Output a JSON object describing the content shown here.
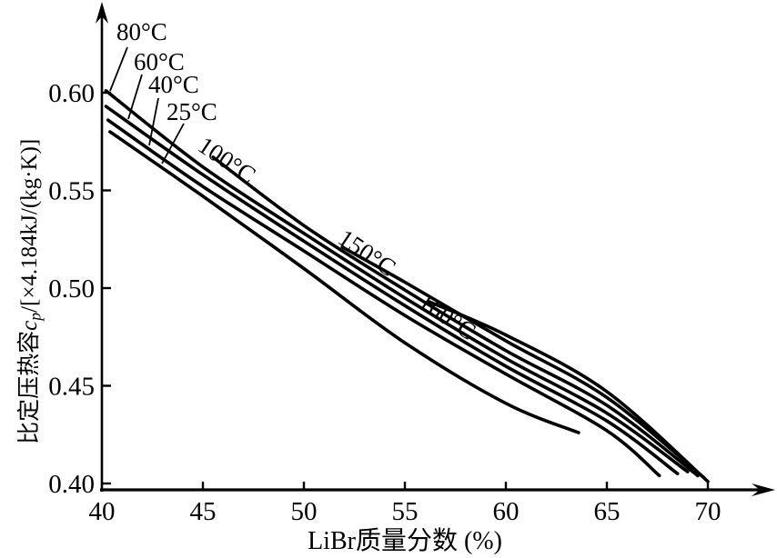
{
  "figure": {
    "background": "#ffffff",
    "ink_color": "#000000"
  },
  "chart_data": {
    "type": "line",
    "title": "",
    "xlabel": "LiBr质量分数 (%)",
    "ylabel": "比定压热容c_p/[×4.184kJ/(kg·K)]",
    "ylabel_parts": {
      "prefix": "比定压热容",
      "symbol": "c",
      "symbol_sub": "p",
      "suffix": "/[×4.184kJ/(kg·K)]"
    },
    "xlim": [
      40,
      72.5
    ],
    "ylim": [
      0.4,
      0.615
    ],
    "x_ticks": [
      40,
      45,
      50,
      55,
      60,
      65,
      70
    ],
    "x_tick_labels": [
      "40",
      "45",
      "50",
      "55",
      "60",
      "65",
      "70"
    ],
    "y_ticks": [
      0.6,
      0.55,
      0.5,
      0.45,
      0.4
    ],
    "y_tick_labels": [
      "0.60",
      "0.55",
      "0.50",
      "0.45",
      "0.40"
    ],
    "grid": false,
    "legend_position": "inline-curve-labels",
    "series": [
      {
        "name": "25°C",
        "label_style": "leader",
        "points": [
          [
            40.4,
            0.58
          ],
          [
            45,
            0.547
          ],
          [
            50,
            0.51
          ],
          [
            55,
            0.472
          ],
          [
            60,
            0.441
          ],
          [
            63.6,
            0.426
          ]
        ]
      },
      {
        "name": "40°C",
        "label_style": "leader",
        "points": [
          [
            40.3,
            0.586
          ],
          [
            45,
            0.552
          ],
          [
            50,
            0.519
          ],
          [
            55,
            0.486
          ],
          [
            60,
            0.456
          ],
          [
            65,
            0.427
          ],
          [
            67.6,
            0.404
          ]
        ]
      },
      {
        "name": "60°C",
        "label_style": "leader",
        "points": [
          [
            40.2,
            0.593
          ],
          [
            45,
            0.558
          ],
          [
            50,
            0.524
          ],
          [
            55,
            0.491
          ],
          [
            60,
            0.46
          ],
          [
            65,
            0.432
          ],
          [
            68.5,
            0.405
          ]
        ]
      },
      {
        "name": "80°C",
        "label_style": "leader",
        "points": [
          [
            40.2,
            0.601
          ],
          [
            45,
            0.562
          ],
          [
            50,
            0.528
          ],
          [
            55,
            0.495
          ],
          [
            60,
            0.464
          ],
          [
            65,
            0.436
          ],
          [
            69.0,
            0.406
          ]
        ]
      },
      {
        "name": "100°C",
        "label_style": "inline",
        "points": [
          [
            45.5,
            0.567
          ],
          [
            50,
            0.532
          ],
          [
            55,
            0.499
          ],
          [
            60,
            0.468
          ],
          [
            65,
            0.44
          ],
          [
            69.5,
            0.404
          ]
        ]
      },
      {
        "name": "150°C",
        "label_style": "inline",
        "points": [
          [
            51.9,
            0.521
          ],
          [
            55,
            0.503
          ],
          [
            60,
            0.473
          ],
          [
            65,
            0.444
          ],
          [
            69.8,
            0.403
          ]
        ]
      },
      {
        "name": "160°C",
        "label_style": "inline",
        "points": [
          [
            56.2,
            0.493
          ],
          [
            60,
            0.476
          ],
          [
            65,
            0.447
          ],
          [
            70.0,
            0.401
          ]
        ]
      }
    ]
  }
}
